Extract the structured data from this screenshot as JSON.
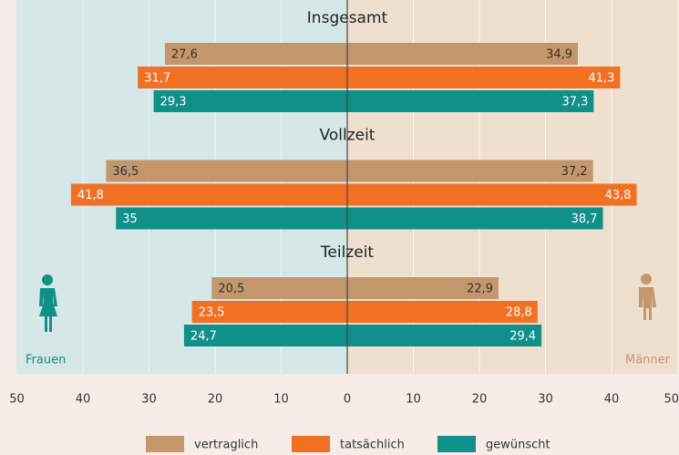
{
  "chart_data": {
    "type": "butterfly",
    "categories": [
      "Insgesamt",
      "Vollzeit",
      "Teilzeit"
    ],
    "left_label": "Frauen",
    "right_label": "Männer",
    "xlim": [
      0,
      50
    ],
    "xticks": [
      0,
      10,
      20,
      30,
      40,
      50
    ],
    "grid": true,
    "left_color": "#d5e7e7",
    "right_color": "#eedfcf",
    "series": [
      {
        "name": "vertraglich",
        "color": "#c4966b",
        "left": {
          "values": [
            27.6,
            36.5,
            20.5
          ],
          "value_labels": [
            "27,6",
            "36,5",
            "20,5"
          ]
        },
        "right": {
          "values": [
            34.9,
            37.2,
            22.9
          ],
          "value_labels": [
            "34,9",
            "37,2",
            "22,9"
          ]
        }
      },
      {
        "name": "tatsächlich",
        "color": "#f07024",
        "left": {
          "values": [
            31.7,
            41.8,
            23.5
          ],
          "value_labels": [
            "31,7",
            "41,8",
            "23,5"
          ]
        },
        "right": {
          "values": [
            41.3,
            43.8,
            28.8
          ],
          "value_labels": [
            "41,3",
            "43,8",
            "28,8"
          ]
        }
      },
      {
        "name": "gewünscht",
        "color": "#0f9088",
        "left": {
          "values": [
            29.3,
            35,
            24.7
          ],
          "value_labels": [
            "29,3",
            "35",
            "24,7"
          ]
        },
        "right": {
          "values": [
            37.3,
            38.7,
            29.4
          ],
          "value_labels": [
            "37,3",
            "38,7",
            "29,4"
          ]
        }
      }
    ]
  }
}
